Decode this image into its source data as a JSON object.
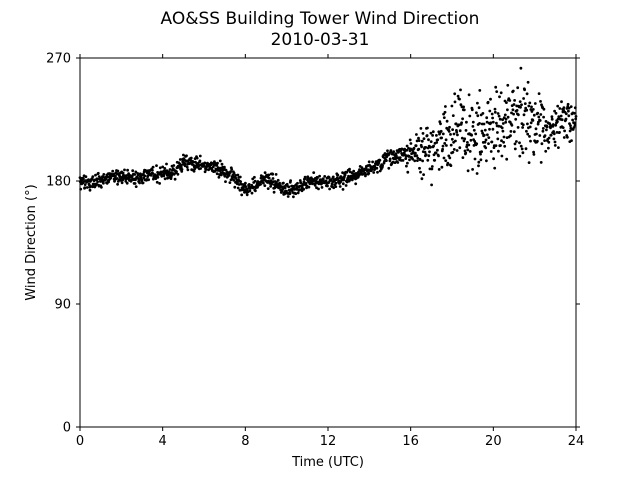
{
  "chart_data": {
    "type": "scatter",
    "title": "AO&SS Building Tower Wind Direction",
    "subtitle": "2010-03-31",
    "xlabel": "Time (UTC)",
    "ylabel": "Wind Direction (°)",
    "xlim": [
      0,
      24
    ],
    "ylim": [
      0,
      270
    ],
    "xticks": [
      0,
      4,
      8,
      12,
      16,
      20,
      24
    ],
    "yticks": [
      0,
      90,
      180,
      270
    ],
    "grid": false,
    "marker_color": "#000000",
    "series": [
      {
        "x": [
          0.0,
          0.5,
          1.0,
          1.5,
          2.0,
          2.5,
          3.0,
          3.5,
          4.0,
          4.5,
          5.0,
          5.5,
          6.0,
          6.5,
          7.0,
          7.5,
          8.0,
          8.5,
          9.0,
          9.5,
          10.0,
          10.5,
          11.0,
          11.5,
          12.0,
          12.5,
          13.0,
          13.5,
          14.0,
          14.5,
          15.0,
          15.5,
          16.0,
          16.5,
          17.0,
          17.5,
          18.0,
          18.5,
          19.0,
          19.5,
          20.0,
          20.5,
          21.0,
          21.5,
          22.0,
          22.5,
          23.0,
          23.5,
          24.0
        ],
        "y": [
          179,
          179,
          180,
          183,
          184,
          181,
          182,
          185,
          185,
          186,
          194,
          193,
          191,
          190,
          186,
          182,
          174,
          176,
          182,
          178,
          173,
          174,
          178,
          180,
          180,
          180,
          183,
          185,
          189,
          193,
          197,
          199,
          199,
          201,
          203,
          207,
          213,
          217,
          218,
          215,
          218,
          220,
          224,
          226,
          223,
          222,
          219,
          224,
          226
        ],
        "spread": [
          3,
          3,
          3,
          3,
          3,
          3,
          3,
          3,
          3,
          3,
          3,
          3,
          3,
          3,
          3,
          3,
          3,
          3,
          3,
          3,
          3,
          3,
          3,
          3,
          3,
          3,
          3,
          3,
          3,
          3,
          4,
          4,
          6,
          9,
          12,
          14,
          15,
          15,
          14,
          14,
          16,
          16,
          16,
          16,
          15,
          14,
          12,
          10,
          6
        ]
      }
    ]
  }
}
